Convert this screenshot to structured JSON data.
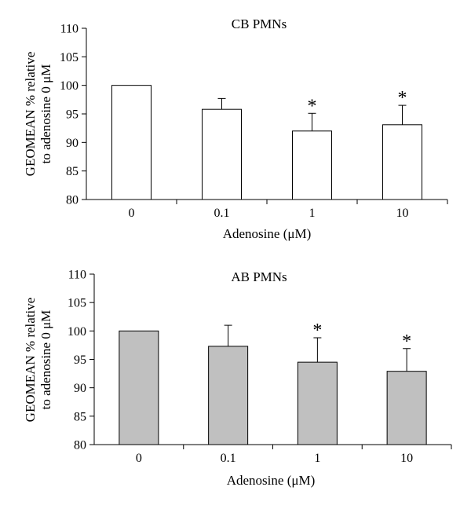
{
  "chart_data": [
    {
      "type": "bar",
      "title": "CB PMNs",
      "xlabel": "Adenosine (μM)",
      "ylabel_line1": "GEOMEAN % relative",
      "ylabel_line2": "to adenosine 0 μM",
      "categories": [
        "0",
        "0.1",
        "1",
        "10"
      ],
      "values": [
        100,
        95.8,
        92.0,
        93.1
      ],
      "errors": [
        0,
        1.9,
        3.1,
        3.4
      ],
      "significant": [
        false,
        false,
        true,
        true
      ],
      "significance_marker": "*",
      "ylim": [
        80,
        110
      ],
      "yticks": [
        "80",
        "85",
        "90",
        "95",
        "100",
        "105",
        "110"
      ],
      "bar_color": "#ffffff",
      "grid": false
    },
    {
      "type": "bar",
      "title": "AB PMNs",
      "xlabel": "Adenosine (μM)",
      "ylabel_line1": "GEOMEAN % relative",
      "ylabel_line2": "to adenosine 0 μM",
      "categories": [
        "0",
        "0.1",
        "1",
        "10"
      ],
      "values": [
        100,
        97.3,
        94.5,
        92.9
      ],
      "errors": [
        0,
        3.7,
        4.3,
        4.0
      ],
      "significant": [
        false,
        false,
        true,
        true
      ],
      "significance_marker": "*",
      "ylim": [
        80,
        110
      ],
      "yticks": [
        "80",
        "85",
        "90",
        "95",
        "100",
        "105",
        "110"
      ],
      "bar_color": "#c0c0c0",
      "grid": false
    }
  ]
}
